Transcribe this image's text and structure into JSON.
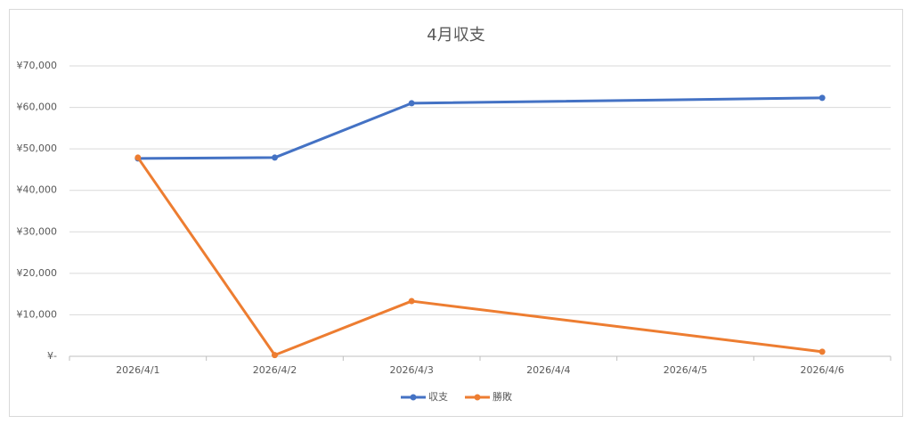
{
  "chart_data": {
    "type": "line",
    "title": "4月収支",
    "categories": [
      "2026/4/1",
      "2026/4/2",
      "2026/4/3",
      "2026/4/4",
      "2026/4/5",
      "2026/4/6"
    ],
    "series": [
      {
        "name": "収支",
        "color": "#4472c4",
        "x": [
          "2026/4/1",
          "2026/4/2",
          "2026/4/3",
          "2026/4/6"
        ],
        "values": [
          47700,
          47900,
          61000,
          62300
        ]
      },
      {
        "name": "勝敗",
        "color": "#ed7d31",
        "x": [
          "2026/4/1",
          "2026/4/2",
          "2026/4/3",
          "2026/4/6"
        ],
        "values": [
          47900,
          300,
          13300,
          1100
        ]
      }
    ],
    "ylim": [
      0,
      70000
    ],
    "yticks": [
      {
        "value": 0,
        "label": "¥-"
      },
      {
        "value": 10000,
        "label": "¥10,000"
      },
      {
        "value": 20000,
        "label": "¥20,000"
      },
      {
        "value": 30000,
        "label": "¥30,000"
      },
      {
        "value": 40000,
        "label": "¥40,000"
      },
      {
        "value": 50000,
        "label": "¥50,000"
      },
      {
        "value": 60000,
        "label": "¥60,000"
      },
      {
        "value": 70000,
        "label": "¥70,000"
      }
    ],
    "grid": true,
    "legend": "bottom"
  }
}
